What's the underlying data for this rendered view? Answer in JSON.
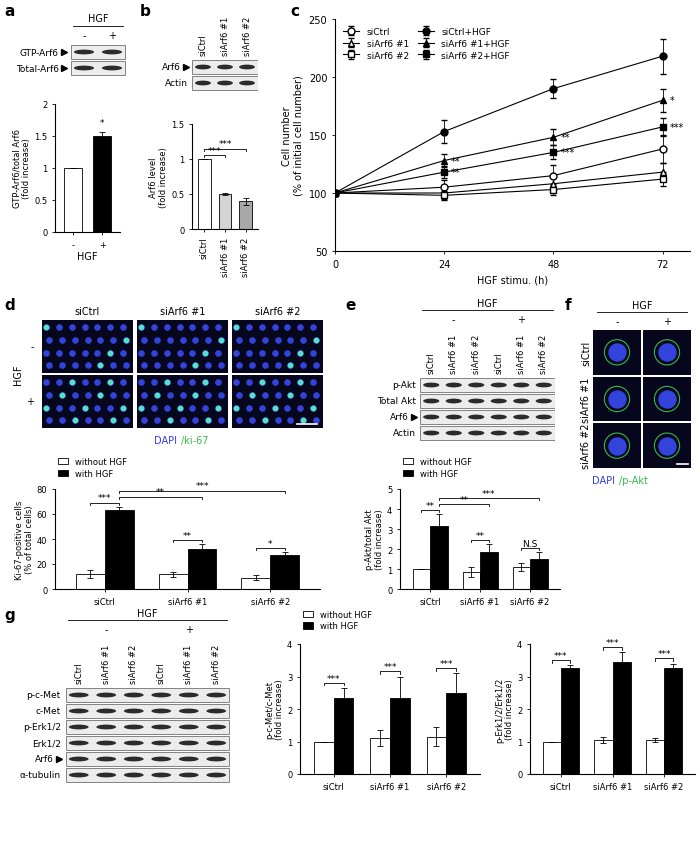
{
  "chart_data": [
    {
      "panel": "a",
      "type": "blot",
      "header": "HGF",
      "lanes": [
        "-",
        "+"
      ],
      "rows": [
        "GTP-Arf6",
        "Total-Arf6"
      ],
      "arrow": [
        true,
        true
      ]
    },
    {
      "type": "bar",
      "categories": [
        "-",
        "+"
      ],
      "values": [
        1,
        1.5
      ],
      "errors": [
        0,
        0.06
      ],
      "colors": [
        "white",
        "black"
      ],
      "x_label": "HGF",
      "y_label": "GTP-Arf6/total Arf6\n(fold increase)",
      "ylim": [
        0,
        2
      ],
      "yticks": [
        0,
        0.5,
        1,
        1.5,
        2
      ],
      "brackets": [
        {
          "from": [
            1,
            0
          ],
          "to": [
            1,
            0
          ],
          "text": "*"
        }
      ]
    },
    {
      "panel": "b",
      "type": "blot",
      "lanes": [
        "siCtrl",
        "siArf6 #1",
        "siArf6 #2"
      ],
      "rows": [
        "Arf6",
        "Actin"
      ],
      "arrow": [
        true,
        false
      ]
    },
    {
      "type": "bar",
      "categories": [
        "siCtrl",
        "siArf6 #1",
        "siArf6 #2"
      ],
      "values": [
        1,
        0.5,
        0.4
      ],
      "errors": [
        0,
        0.02,
        0.05
      ],
      "colors": [
        "white",
        "#d4d4d4",
        "#a8a8a8"
      ],
      "y_label": "Arf6 level\n(fold increase)",
      "ylim": [
        0,
        1.5
      ],
      "yticks": [
        0,
        0.5,
        1,
        1.5
      ],
      "brackets": [
        {
          "from": [
            0,
            0
          ],
          "to": [
            1,
            0
          ],
          "text": "***"
        },
        {
          "from": [
            0,
            0
          ],
          "to": [
            2,
            0
          ],
          "text": "***"
        }
      ]
    },
    {
      "panel": "c",
      "type": "line",
      "x": [
        0,
        24,
        48,
        72
      ],
      "xlim": [
        0,
        78
      ],
      "xticks": [
        0,
        24,
        48,
        72
      ],
      "ylim": [
        50,
        250
      ],
      "yticks": [
        50,
        100,
        150,
        200,
        250
      ],
      "x_label": "HGF stimu. (h)",
      "y_label": "Cell number\n(% of initial cell number)",
      "legend": "upper left",
      "series": [
        {
          "name": "siCtrl",
          "marker": "circle",
          "color": "white",
          "values": [
            100,
            105,
            115,
            138
          ],
          "errors": [
            0,
            6,
            9,
            12
          ]
        },
        {
          "name": "siArf6 #1",
          "marker": "triangle",
          "color": "white",
          "values": [
            100,
            100,
            108,
            118
          ],
          "errors": [
            0,
            5,
            6,
            8
          ]
        },
        {
          "name": "siArf6 #2",
          "marker": "square",
          "color": "white",
          "values": [
            100,
            98,
            103,
            112
          ],
          "errors": [
            0,
            4,
            5,
            6
          ]
        },
        {
          "name": "siCtrl+HGF",
          "marker": "circle",
          "color": "black",
          "values": [
            100,
            153,
            190,
            218
          ],
          "errors": [
            0,
            10,
            8,
            15
          ]
        },
        {
          "name": "siArf6 #1+HGF",
          "marker": "triangle",
          "color": "black",
          "values": [
            100,
            128,
            148,
            180
          ],
          "errors": [
            0,
            6,
            7,
            10
          ]
        },
        {
          "name": "siArf6 #2+HGF",
          "marker": "square",
          "color": "black",
          "values": [
            100,
            118,
            135,
            157
          ],
          "errors": [
            0,
            5,
            6,
            8
          ]
        }
      ],
      "annotations": [
        {
          "series": "siArf6 #1+HGF",
          "x": 24,
          "text": "**"
        },
        {
          "series": "siArf6 #2+HGF",
          "x": 24,
          "text": "**"
        },
        {
          "series": "siArf6 #1+HGF",
          "x": 48,
          "text": "**"
        },
        {
          "series": "siArf6 #2+HGF",
          "x": 48,
          "text": "***"
        },
        {
          "series": "siArf6 #1+HGF",
          "x": 72,
          "text": "*"
        },
        {
          "series": "siArf6 #2+HGF",
          "x": 72,
          "text": "***"
        }
      ]
    },
    {
      "panel": "d",
      "type": "image",
      "columns": [
        "siCtrl",
        "siArf6 #1",
        "siArf6 #2"
      ],
      "row_header": "HGF",
      "rows": [
        "-",
        "+"
      ],
      "caption": [
        {
          "text": "DAPI",
          "color": "#2f3fe0"
        },
        {
          "text": "/ki-67",
          "color": "#3ab84a"
        }
      ]
    },
    {
      "type": "bar",
      "categories": [
        "siCtrl",
        "siArf6 #1",
        "siArf6 #2"
      ],
      "legend": "lower left",
      "series": [
        {
          "name": "without HGF",
          "color": "white",
          "values": [
            12,
            12,
            9
          ],
          "errors": [
            3,
            2,
            2
          ]
        },
        {
          "name": "with HGF",
          "color": "black",
          "values": [
            63,
            32,
            27
          ],
          "errors": [
            3,
            4,
            3
          ]
        }
      ],
      "y_label": "Ki-67-positive cells\n(% of total cells)",
      "ylim": [
        0,
        80
      ],
      "yticks": [
        0,
        20,
        40,
        60,
        80
      ],
      "brackets": [
        {
          "from": [
            0,
            0
          ],
          "to": [
            0,
            1
          ],
          "text": "***"
        },
        {
          "from": [
            1,
            0
          ],
          "to": [
            1,
            1
          ],
          "text": "**"
        },
        {
          "from": [
            2,
            0
          ],
          "to": [
            2,
            1
          ],
          "text": "*"
        },
        {
          "from": [
            0,
            1
          ],
          "to": [
            1,
            1
          ],
          "text": "**"
        },
        {
          "from": [
            0,
            1
          ],
          "to": [
            2,
            1
          ],
          "text": "***"
        }
      ]
    },
    {
      "panel": "e",
      "type": "blot",
      "header": "HGF",
      "groups": [
        "-",
        "+"
      ],
      "lanes": [
        "siCtrl",
        "siArf6 #1",
        "siArf6 #2",
        "siCtrl",
        "siArf6 #1",
        "siArf6 #2"
      ],
      "rows": [
        "p-Akt",
        "Total Akt",
        "Arf6",
        "Actin"
      ],
      "arrow": [
        false,
        false,
        true,
        false
      ]
    },
    {
      "type": "bar",
      "categories": [
        "siCtrl",
        "siArf6 #1",
        "siArf6 #2"
      ],
      "legend": "lower left",
      "series": [
        {
          "name": "without HGF",
          "color": "white",
          "values": [
            1,
            0.85,
            1.1
          ],
          "errors": [
            0,
            0.25,
            0.2
          ]
        },
        {
          "name": "with HGF",
          "color": "black",
          "values": [
            3.15,
            1.85,
            1.5
          ],
          "errors": [
            0.6,
            0.4,
            0.35
          ]
        }
      ],
      "y_label": "p-Akt/total Akt\n(fold increase)",
      "ylim": [
        0,
        5
      ],
      "yticks": [
        0,
        1,
        2,
        3,
        4,
        5
      ],
      "brackets": [
        {
          "from": [
            0,
            0
          ],
          "to": [
            0,
            1
          ],
          "text": "**"
        },
        {
          "from": [
            1,
            0
          ],
          "to": [
            1,
            1
          ],
          "text": "**"
        },
        {
          "from": [
            2,
            0
          ],
          "to": [
            2,
            1
          ],
          "text": "N.S"
        },
        {
          "from": [
            0,
            1
          ],
          "to": [
            1,
            1
          ],
          "text": "**"
        },
        {
          "from": [
            0,
            1
          ],
          "to": [
            2,
            1
          ],
          "text": "***"
        }
      ]
    },
    {
      "panel": "f",
      "type": "image",
      "header": "HGF",
      "columns": [
        "-",
        "+"
      ],
      "rows": [
        "siCtrl",
        "siArf6 #1",
        "siArf6 #2"
      ],
      "caption": [
        {
          "text": "DAPI",
          "color": "#2f3fe0"
        },
        {
          "text": "/p-Akt",
          "color": "#3ab84a"
        }
      ]
    },
    {
      "panel": "g",
      "type": "blot",
      "header": "HGF",
      "groups": [
        "-",
        "+"
      ],
      "lanes": [
        "siCtrl",
        "siArf6 #1",
        "siArf6 #2",
        "siCtrl",
        "siArf6 #1",
        "siArf6 #2"
      ],
      "rows": [
        "p-c-Met",
        "c-Met",
        "p-Erk1/2",
        "Erk1/2",
        "Arf6",
        "α-tubulin"
      ],
      "arrow": [
        false,
        false,
        false,
        false,
        true,
        false
      ]
    },
    {
      "type": "bar",
      "categories": [
        "siCtrl",
        "siArf6 #1",
        "siArf6 #2"
      ],
      "legend": "lower left",
      "series": [
        {
          "name": "without HGF",
          "color": "white",
          "values": [
            1,
            1.1,
            1.15
          ],
          "errors": [
            0,
            0.25,
            0.3
          ]
        },
        {
          "name": "with HGF",
          "color": "black",
          "values": [
            2.35,
            2.35,
            2.5
          ],
          "errors": [
            0.3,
            0.65,
            0.6
          ]
        }
      ],
      "y_label": "p-c-Met/c-Met\n(fold increase)",
      "ylim": [
        0,
        4
      ],
      "yticks": [
        0,
        1,
        2,
        3,
        4
      ],
      "brackets": [
        {
          "from": [
            0,
            0
          ],
          "to": [
            0,
            1
          ],
          "text": "***"
        },
        {
          "from": [
            1,
            0
          ],
          "to": [
            1,
            1
          ],
          "text": "***"
        },
        {
          "from": [
            2,
            0
          ],
          "to": [
            2,
            1
          ],
          "text": "***"
        }
      ]
    },
    {
      "type": "bar",
      "categories": [
        "siCtrl",
        "siArf6 #1",
        "siArf6 #2"
      ],
      "series": [
        {
          "name": "without HGF",
          "color": "white",
          "values": [
            1,
            1.05,
            1.05
          ],
          "errors": [
            0,
            0.1,
            0.05
          ]
        },
        {
          "name": "with HGF",
          "color": "black",
          "values": [
            3.25,
            3.45,
            3.25
          ],
          "errors": [
            0.1,
            0.3,
            0.15
          ]
        }
      ],
      "y_label": "p-Erk1/2/Erk1/2\n(fold increase)",
      "ylim": [
        0,
        4
      ],
      "yticks": [
        0,
        1,
        2,
        3,
        4
      ],
      "brackets": [
        {
          "from": [
            0,
            0
          ],
          "to": [
            0,
            1
          ],
          "text": "***"
        },
        {
          "from": [
            1,
            0
          ],
          "to": [
            1,
            1
          ],
          "text": "***"
        },
        {
          "from": [
            2,
            0
          ],
          "to": [
            2,
            1
          ],
          "text": "***"
        }
      ]
    }
  ]
}
